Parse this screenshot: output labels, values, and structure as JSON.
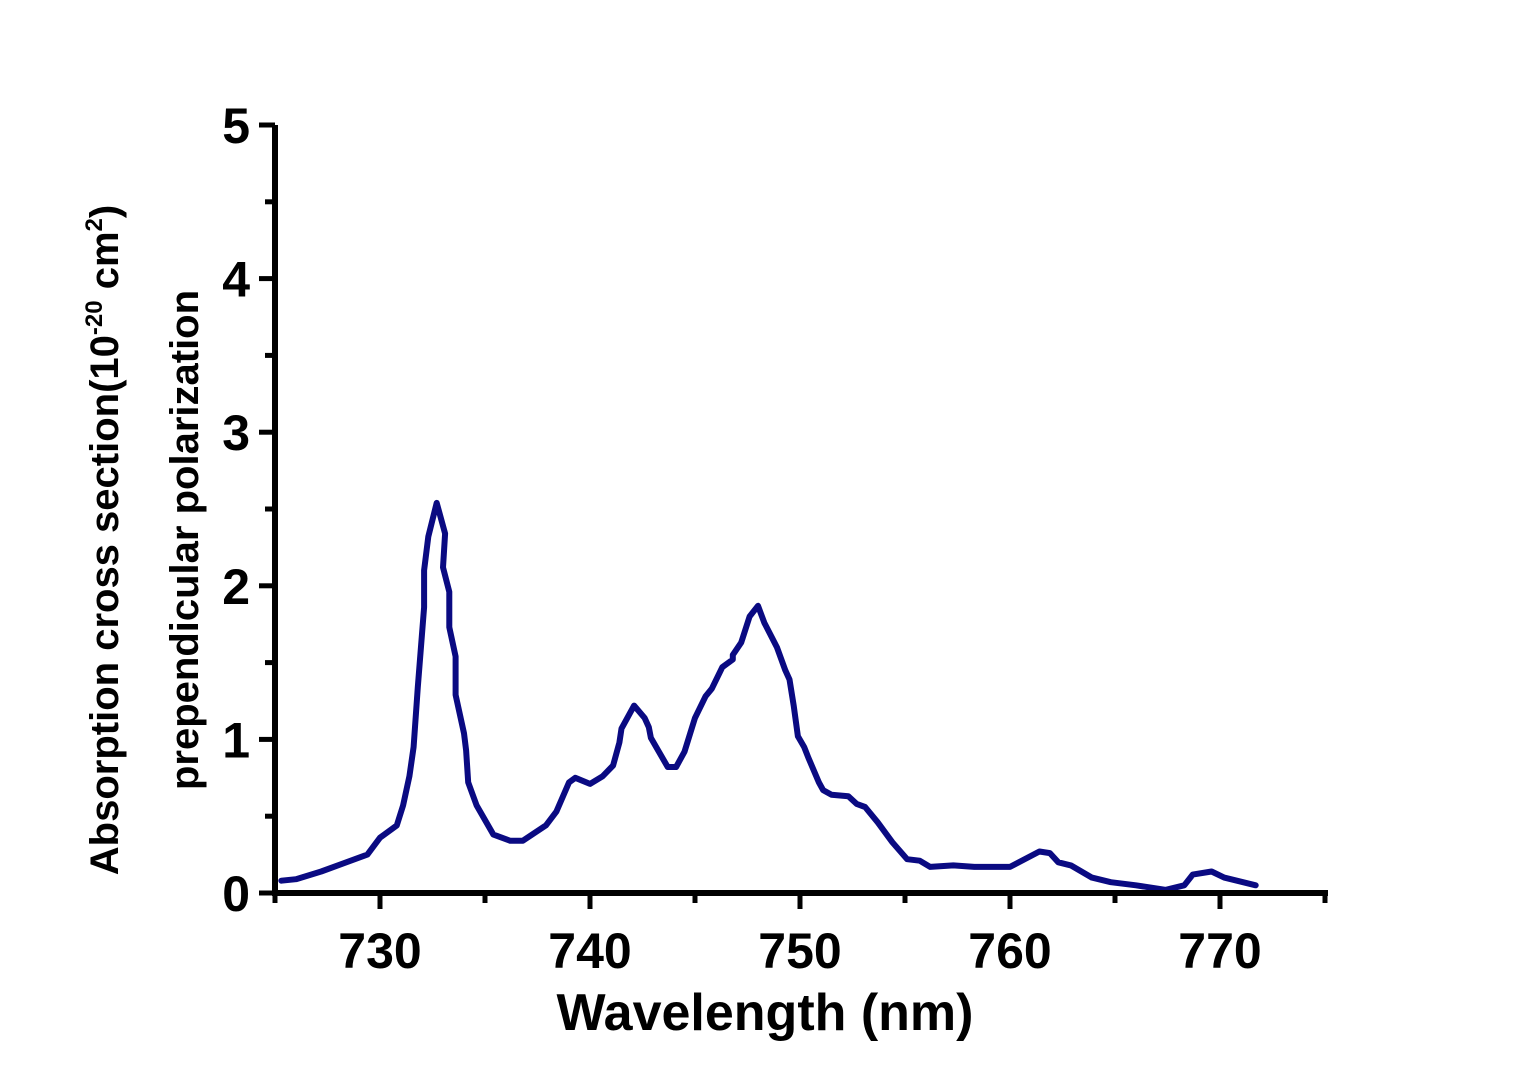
{
  "chart_data": {
    "type": "line",
    "title": "",
    "xlabel": "Wavelength (nm)",
    "ylabel_line1_main": "Absorption cross section(10",
    "ylabel_line1_sup1": "-20",
    "ylabel_line1_mid": " cm",
    "ylabel_line1_sup2": "2",
    "ylabel_line1_end": ")",
    "ylabel_line2": "prependicular polarization",
    "xlim": [
      725,
      775
    ],
    "ylim": [
      0,
      5
    ],
    "xticks": [
      730,
      740,
      750,
      760,
      770
    ],
    "xtick_labels": [
      "730",
      "740",
      "750",
      "760",
      "770"
    ],
    "x_minor_step": 5,
    "yticks": [
      0,
      1,
      2,
      3,
      4,
      5
    ],
    "ytick_labels": [
      "0",
      "1",
      "2",
      "3",
      "4",
      "5"
    ],
    "y_minor_step": 0.5,
    "grid": false,
    "legend": "none",
    "line_color": "#0a0a82",
    "axis_color": "#000000",
    "series": [
      {
        "x": [
          725.3,
          726.0,
          727.2,
          728.2,
          729.4,
          730.0,
          730.8,
          731.1,
          731.4,
          731.6,
          731.8,
          732.1,
          732.1,
          732.3,
          732.7,
          733.1,
          733.0,
          733.3,
          733.3,
          733.6,
          733.6,
          734.0,
          734.1,
          734.2,
          734.6,
          735.4,
          736.2,
          736.8,
          737.9,
          738.4,
          739.0,
          739.3,
          740.0,
          740.6,
          741.1,
          741.4,
          741.5,
          742.1,
          742.6,
          742.8,
          742.9,
          743.7,
          744.1,
          744.5,
          745.0,
          745.5,
          745.8,
          746.3,
          746.8,
          746.8,
          747.2,
          747.6,
          748.0,
          748.3,
          748.9,
          749.3,
          749.5,
          749.7,
          749.9,
          750.2,
          750.4,
          750.9,
          751.1,
          751.5,
          752.3,
          752.7,
          753.1,
          753.7,
          754.4,
          755.1,
          755.7,
          756.2,
          757.3,
          758.3,
          760.0,
          761.4,
          761.9,
          762.3,
          762.9,
          763.9,
          764.8,
          766.0,
          767.4,
          768.3,
          768.7,
          769.6,
          770.2,
          771.7
        ],
        "y": [
          0.08,
          0.09,
          0.14,
          0.19,
          0.25,
          0.36,
          0.44,
          0.57,
          0.76,
          0.95,
          1.34,
          1.86,
          2.1,
          2.32,
          2.54,
          2.34,
          2.12,
          1.96,
          1.73,
          1.54,
          1.29,
          1.04,
          0.93,
          0.72,
          0.57,
          0.38,
          0.34,
          0.34,
          0.44,
          0.53,
          0.72,
          0.75,
          0.71,
          0.76,
          0.83,
          0.98,
          1.07,
          1.22,
          1.14,
          1.08,
          1.01,
          0.82,
          0.82,
          0.92,
          1.14,
          1.28,
          1.33,
          1.47,
          1.52,
          1.55,
          1.63,
          1.8,
          1.87,
          1.76,
          1.6,
          1.45,
          1.39,
          1.22,
          1.02,
          0.95,
          0.88,
          0.72,
          0.67,
          0.64,
          0.63,
          0.58,
          0.56,
          0.46,
          0.33,
          0.22,
          0.21,
          0.17,
          0.18,
          0.17,
          0.17,
          0.27,
          0.26,
          0.2,
          0.18,
          0.1,
          0.07,
          0.05,
          0.02,
          0.05,
          0.12,
          0.14,
          0.1,
          0.05
        ]
      }
    ]
  }
}
